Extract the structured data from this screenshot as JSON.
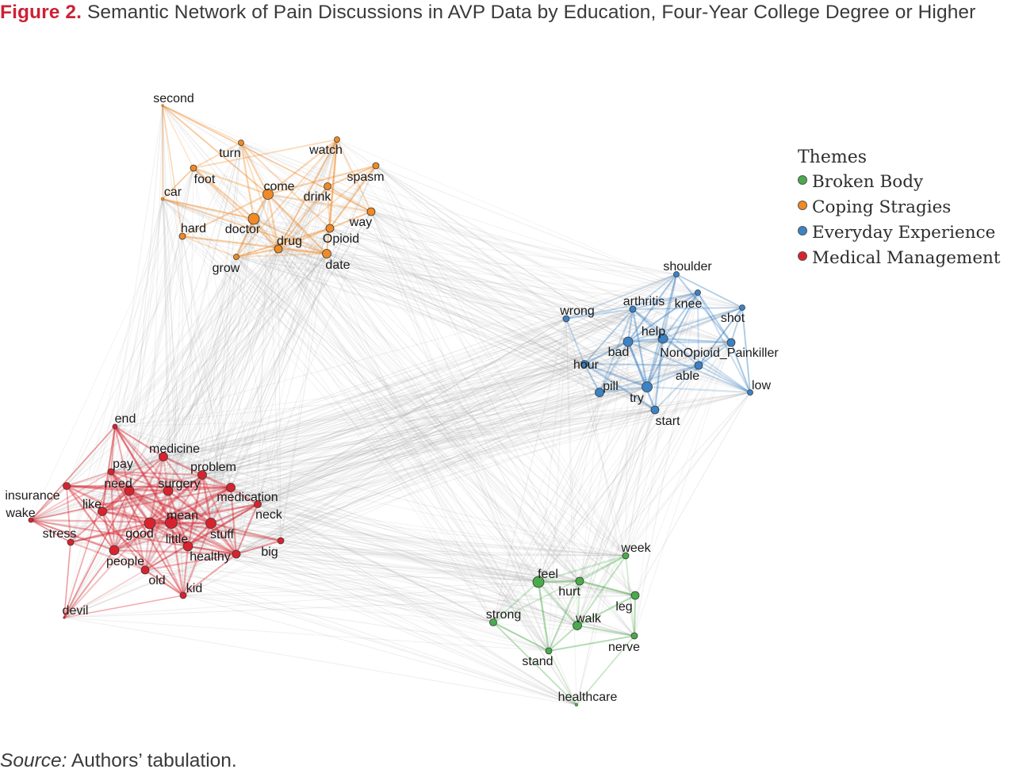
{
  "figure": {
    "label": "Figure 2.",
    "title": "Semantic Network of Pain Discussions in AVP Data by Education, Four-Year College Degree or Higher"
  },
  "legend": {
    "title": "Themes",
    "items": [
      {
        "id": "broken",
        "label": "Broken Body",
        "color": "#4aab4a"
      },
      {
        "id": "coping",
        "label": "Coping Stragies",
        "color": "#ef8a26"
      },
      {
        "id": "everyday",
        "label": "Everyday Experience",
        "color": "#3c82c4"
      },
      {
        "id": "medical",
        "label": "Medical Management",
        "color": "#d8232e"
      }
    ]
  },
  "source": {
    "label": "Source:",
    "text": "Authors’ tabulation."
  },
  "colors": {
    "coping": "#ef8a26",
    "everyday": "#3c82c4",
    "medical": "#d8232e",
    "broken": "#4aab4a",
    "edge_cross": "#a0a0a0"
  },
  "network": {
    "nodes": [
      {
        "id": "second",
        "label": "second",
        "group": "coping"
      },
      {
        "id": "turn",
        "label": "turn",
        "group": "coping"
      },
      {
        "id": "watch",
        "label": "watch",
        "group": "coping"
      },
      {
        "id": "foot",
        "label": "foot",
        "group": "coping"
      },
      {
        "id": "spasm",
        "label": "spasm",
        "group": "coping"
      },
      {
        "id": "car",
        "label": "car",
        "group": "coping"
      },
      {
        "id": "come",
        "label": "come",
        "group": "coping"
      },
      {
        "id": "drink",
        "label": "drink",
        "group": "coping"
      },
      {
        "id": "way",
        "label": "way",
        "group": "coping"
      },
      {
        "id": "hard",
        "label": "hard",
        "group": "coping"
      },
      {
        "id": "doctor",
        "label": "doctor",
        "group": "coping"
      },
      {
        "id": "drug",
        "label": "drug",
        "group": "coping"
      },
      {
        "id": "opioid",
        "label": "Opioid",
        "group": "coping"
      },
      {
        "id": "grow",
        "label": "grow",
        "group": "coping"
      },
      {
        "id": "date",
        "label": "date",
        "group": "coping"
      },
      {
        "id": "shoulder",
        "label": "shoulder",
        "group": "everyday"
      },
      {
        "id": "arthritis",
        "label": "arthritis",
        "group": "everyday"
      },
      {
        "id": "knee",
        "label": "knee",
        "group": "everyday"
      },
      {
        "id": "wrong",
        "label": "wrong",
        "group": "everyday"
      },
      {
        "id": "shot",
        "label": "shot",
        "group": "everyday"
      },
      {
        "id": "help",
        "label": "help",
        "group": "everyday"
      },
      {
        "id": "bad",
        "label": "bad",
        "group": "everyday"
      },
      {
        "id": "nonopioid",
        "label": "NonOpioid_Painkiller",
        "group": "everyday"
      },
      {
        "id": "hour",
        "label": "hour",
        "group": "everyday"
      },
      {
        "id": "able",
        "label": "able",
        "group": "everyday"
      },
      {
        "id": "pill",
        "label": "pill",
        "group": "everyday"
      },
      {
        "id": "try",
        "label": "try",
        "group": "everyday"
      },
      {
        "id": "low",
        "label": "low",
        "group": "everyday"
      },
      {
        "id": "start",
        "label": "start",
        "group": "everyday"
      },
      {
        "id": "end",
        "label": "end",
        "group": "medical"
      },
      {
        "id": "medicine",
        "label": "medicine",
        "group": "medical"
      },
      {
        "id": "pay",
        "label": "pay",
        "group": "medical"
      },
      {
        "id": "problem",
        "label": "problem",
        "group": "medical"
      },
      {
        "id": "need",
        "label": "need",
        "group": "medical"
      },
      {
        "id": "surgery",
        "label": "surgery",
        "group": "medical"
      },
      {
        "id": "insurance",
        "label": "insurance",
        "group": "medical"
      },
      {
        "id": "medication",
        "label": "medication",
        "group": "medical"
      },
      {
        "id": "like",
        "label": "like",
        "group": "medical"
      },
      {
        "id": "wake",
        "label": "wake",
        "group": "medical"
      },
      {
        "id": "mean",
        "label": "mean",
        "group": "medical"
      },
      {
        "id": "neck",
        "label": "neck",
        "group": "medical"
      },
      {
        "id": "stress",
        "label": "stress",
        "group": "medical"
      },
      {
        "id": "good",
        "label": "good",
        "group": "medical"
      },
      {
        "id": "stuff",
        "label": "stuff",
        "group": "medical"
      },
      {
        "id": "little",
        "label": "little",
        "group": "medical"
      },
      {
        "id": "big",
        "label": "big",
        "group": "medical"
      },
      {
        "id": "people",
        "label": "people",
        "group": "medical"
      },
      {
        "id": "healthy",
        "label": "healthy",
        "group": "medical"
      },
      {
        "id": "old",
        "label": "old",
        "group": "medical"
      },
      {
        "id": "kid",
        "label": "kid",
        "group": "medical"
      },
      {
        "id": "devil",
        "label": "devil",
        "group": "medical"
      },
      {
        "id": "week",
        "label": "week",
        "group": "broken"
      },
      {
        "id": "feel",
        "label": "feel",
        "group": "broken"
      },
      {
        "id": "hurt",
        "label": "hurt",
        "group": "broken"
      },
      {
        "id": "leg",
        "label": "leg",
        "group": "broken"
      },
      {
        "id": "strong",
        "label": "strong",
        "group": "broken"
      },
      {
        "id": "walk",
        "label": "walk",
        "group": "broken"
      },
      {
        "id": "nerve",
        "label": "nerve",
        "group": "broken"
      },
      {
        "id": "stand",
        "label": "stand",
        "group": "broken"
      },
      {
        "id": "healthcare",
        "label": "healthcare",
        "group": "broken"
      }
    ]
  }
}
